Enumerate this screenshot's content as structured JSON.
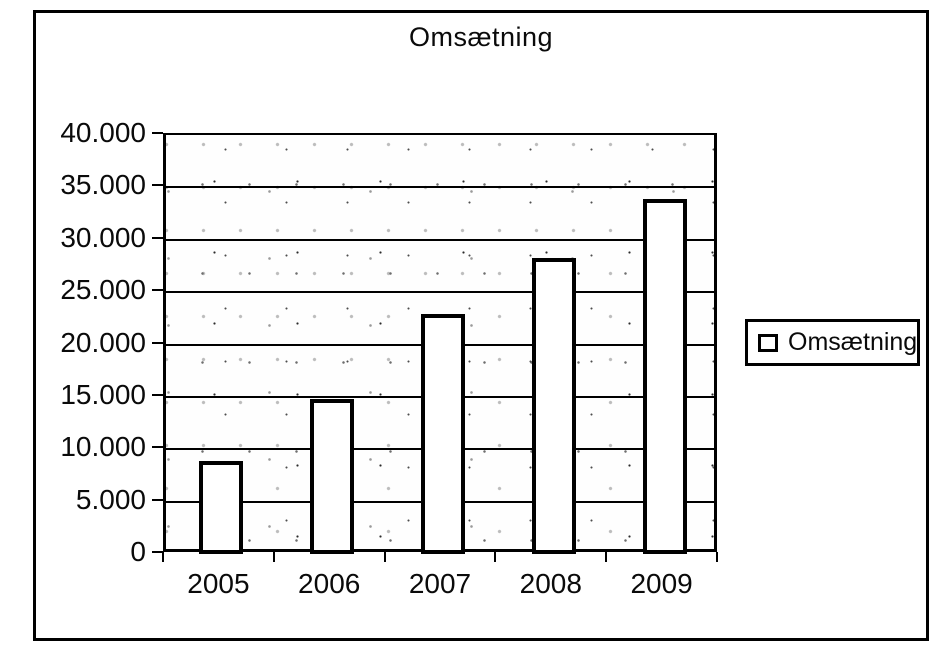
{
  "chart_data": {
    "type": "bar",
    "title": "Omsætning",
    "categories": [
      "2005",
      "2006",
      "2007",
      "2008",
      "2009"
    ],
    "series": [
      {
        "name": "Omsætning",
        "values": [
          8900,
          14800,
          22900,
          28300,
          33900
        ]
      }
    ],
    "ylim": [
      0,
      40000
    ],
    "ytick_interval": 5000,
    "ytick_labels": [
      "0",
      "5.000",
      "10.000",
      "15.000",
      "20.000",
      "25.000",
      "30.000",
      "35.000",
      "40.000"
    ],
    "xlabel": "",
    "ylabel": "",
    "grid": true,
    "legend_position": "right",
    "colors": {
      "ink": "#000000",
      "bar_fill": "#ffffff",
      "bar_border": "#000000",
      "background": "#ffffff"
    }
  },
  "legend": {
    "label": "Omsætning"
  }
}
